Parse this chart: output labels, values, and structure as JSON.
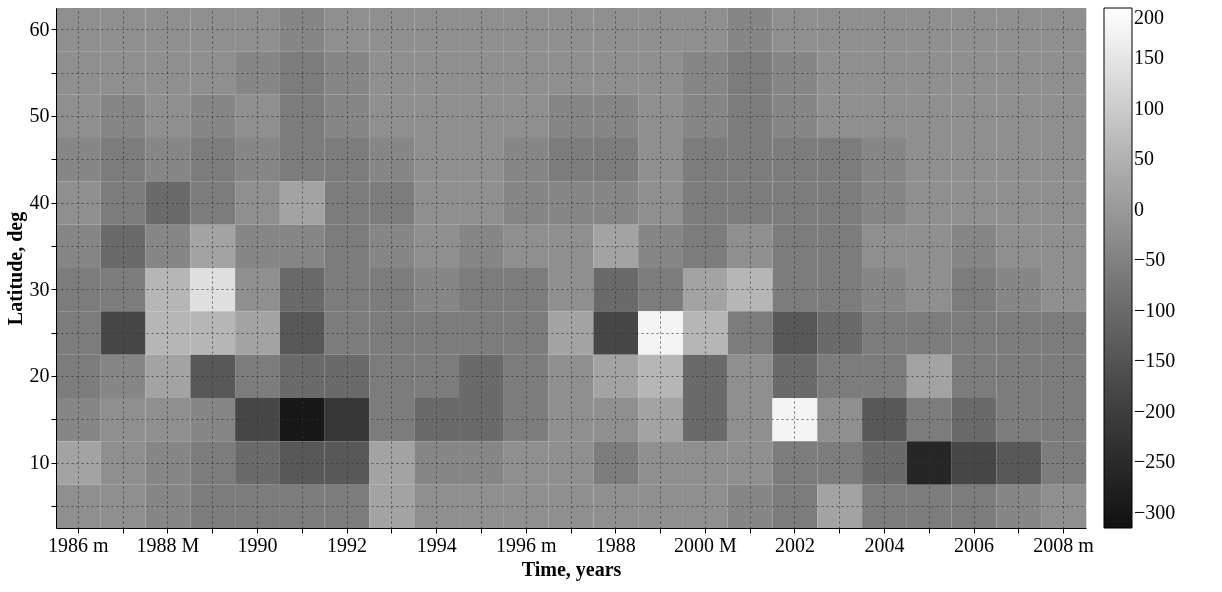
{
  "chart_data": {
    "type": "heatmap",
    "xlabel": "Time, years",
    "ylabel": "Latitude, deg",
    "categories": [
      "1986 m",
      null,
      "1988 M",
      null,
      "1990",
      null,
      "1992",
      null,
      "1994",
      null,
      "1996 m",
      null,
      "1988",
      null,
      "2000 M",
      null,
      "2002",
      null,
      "2004",
      null,
      "2006",
      null,
      "2008 m"
    ],
    "y_categories": [
      "60",
      null,
      "50",
      null,
      "40",
      null,
      "30",
      null,
      "20",
      null,
      "10",
      null
    ],
    "cells": [
      [
        -20,
        -20,
        -20,
        -20,
        -20,
        -40,
        -20,
        -20,
        -20,
        -20,
        -20,
        -20,
        -20,
        -20,
        -20,
        -40,
        -20,
        -20,
        -20,
        -20,
        -20,
        -20,
        -20
      ],
      [
        -20,
        -20,
        -20,
        -20,
        -40,
        -60,
        -40,
        -20,
        -20,
        -20,
        -20,
        -20,
        -20,
        -20,
        -40,
        -60,
        -40,
        -20,
        -20,
        -20,
        -20,
        -20,
        -20
      ],
      [
        -20,
        -40,
        -20,
        -40,
        -20,
        -60,
        -40,
        -20,
        -20,
        -20,
        -20,
        -40,
        -40,
        -20,
        -40,
        -60,
        -40,
        -20,
        -20,
        -20,
        -20,
        -20,
        -20
      ],
      [
        -40,
        -60,
        -40,
        -60,
        -40,
        -60,
        -60,
        -40,
        -20,
        -20,
        -40,
        -60,
        -60,
        -20,
        -60,
        -60,
        -60,
        -60,
        -40,
        -20,
        -20,
        -20,
        -20
      ],
      [
        -20,
        -60,
        -100,
        -60,
        -20,
        20,
        -60,
        -60,
        -20,
        -20,
        -40,
        -40,
        -40,
        -20,
        -60,
        -60,
        -60,
        -60,
        -40,
        -20,
        -20,
        -20,
        -20
      ],
      [
        -40,
        -100,
        -40,
        20,
        -40,
        -40,
        -60,
        -40,
        -20,
        -40,
        -20,
        -20,
        20,
        -40,
        -60,
        -20,
        -60,
        -60,
        -20,
        -20,
        -40,
        -20,
        -20
      ],
      [
        -60,
        -60,
        60,
        140,
        -20,
        -100,
        -60,
        -60,
        -40,
        -60,
        -60,
        -20,
        -100,
        -60,
        20,
        60,
        -60,
        -60,
        -40,
        -20,
        -60,
        -40,
        -20
      ],
      [
        -60,
        -180,
        60,
        60,
        20,
        -140,
        -60,
        -60,
        -60,
        -60,
        -60,
        20,
        -180,
        180,
        60,
        -60,
        -140,
        -100,
        -60,
        -60,
        -60,
        -60,
        -60
      ],
      [
        -60,
        -40,
        20,
        -140,
        -60,
        -100,
        -100,
        -60,
        -60,
        -100,
        -60,
        -20,
        20,
        60,
        -100,
        -20,
        -100,
        -60,
        -60,
        20,
        -60,
        -60,
        -60
      ],
      [
        -40,
        -20,
        -20,
        -40,
        -180,
        -300,
        -220,
        -60,
        -100,
        -100,
        -60,
        -20,
        -20,
        20,
        -100,
        -20,
        180,
        -20,
        -140,
        -60,
        -100,
        -60,
        -60
      ],
      [
        20,
        -20,
        -40,
        -60,
        -100,
        -140,
        -140,
        20,
        -40,
        -40,
        -20,
        -20,
        -60,
        -20,
        -20,
        -20,
        -60,
        -60,
        -100,
        -260,
        -180,
        -140,
        -60
      ],
      [
        -20,
        -20,
        -40,
        -60,
        -60,
        -60,
        -60,
        20,
        -20,
        -20,
        -20,
        -20,
        -20,
        -20,
        -20,
        -40,
        -60,
        20,
        -60,
        -60,
        -60,
        -40,
        -20
      ]
    ],
    "clim": [
      -315,
      200
    ],
    "cticks": [
      {
        "value": -300,
        "label": "−300"
      },
      {
        "value": -250,
        "label": "−250"
      },
      {
        "value": -200,
        "label": "−200"
      },
      {
        "value": -150,
        "label": "−150"
      },
      {
        "value": -100,
        "label": "−100"
      },
      {
        "value": -50,
        "label": "−50"
      },
      0,
      50,
      100,
      150,
      200
    ],
    "grid": true
  }
}
